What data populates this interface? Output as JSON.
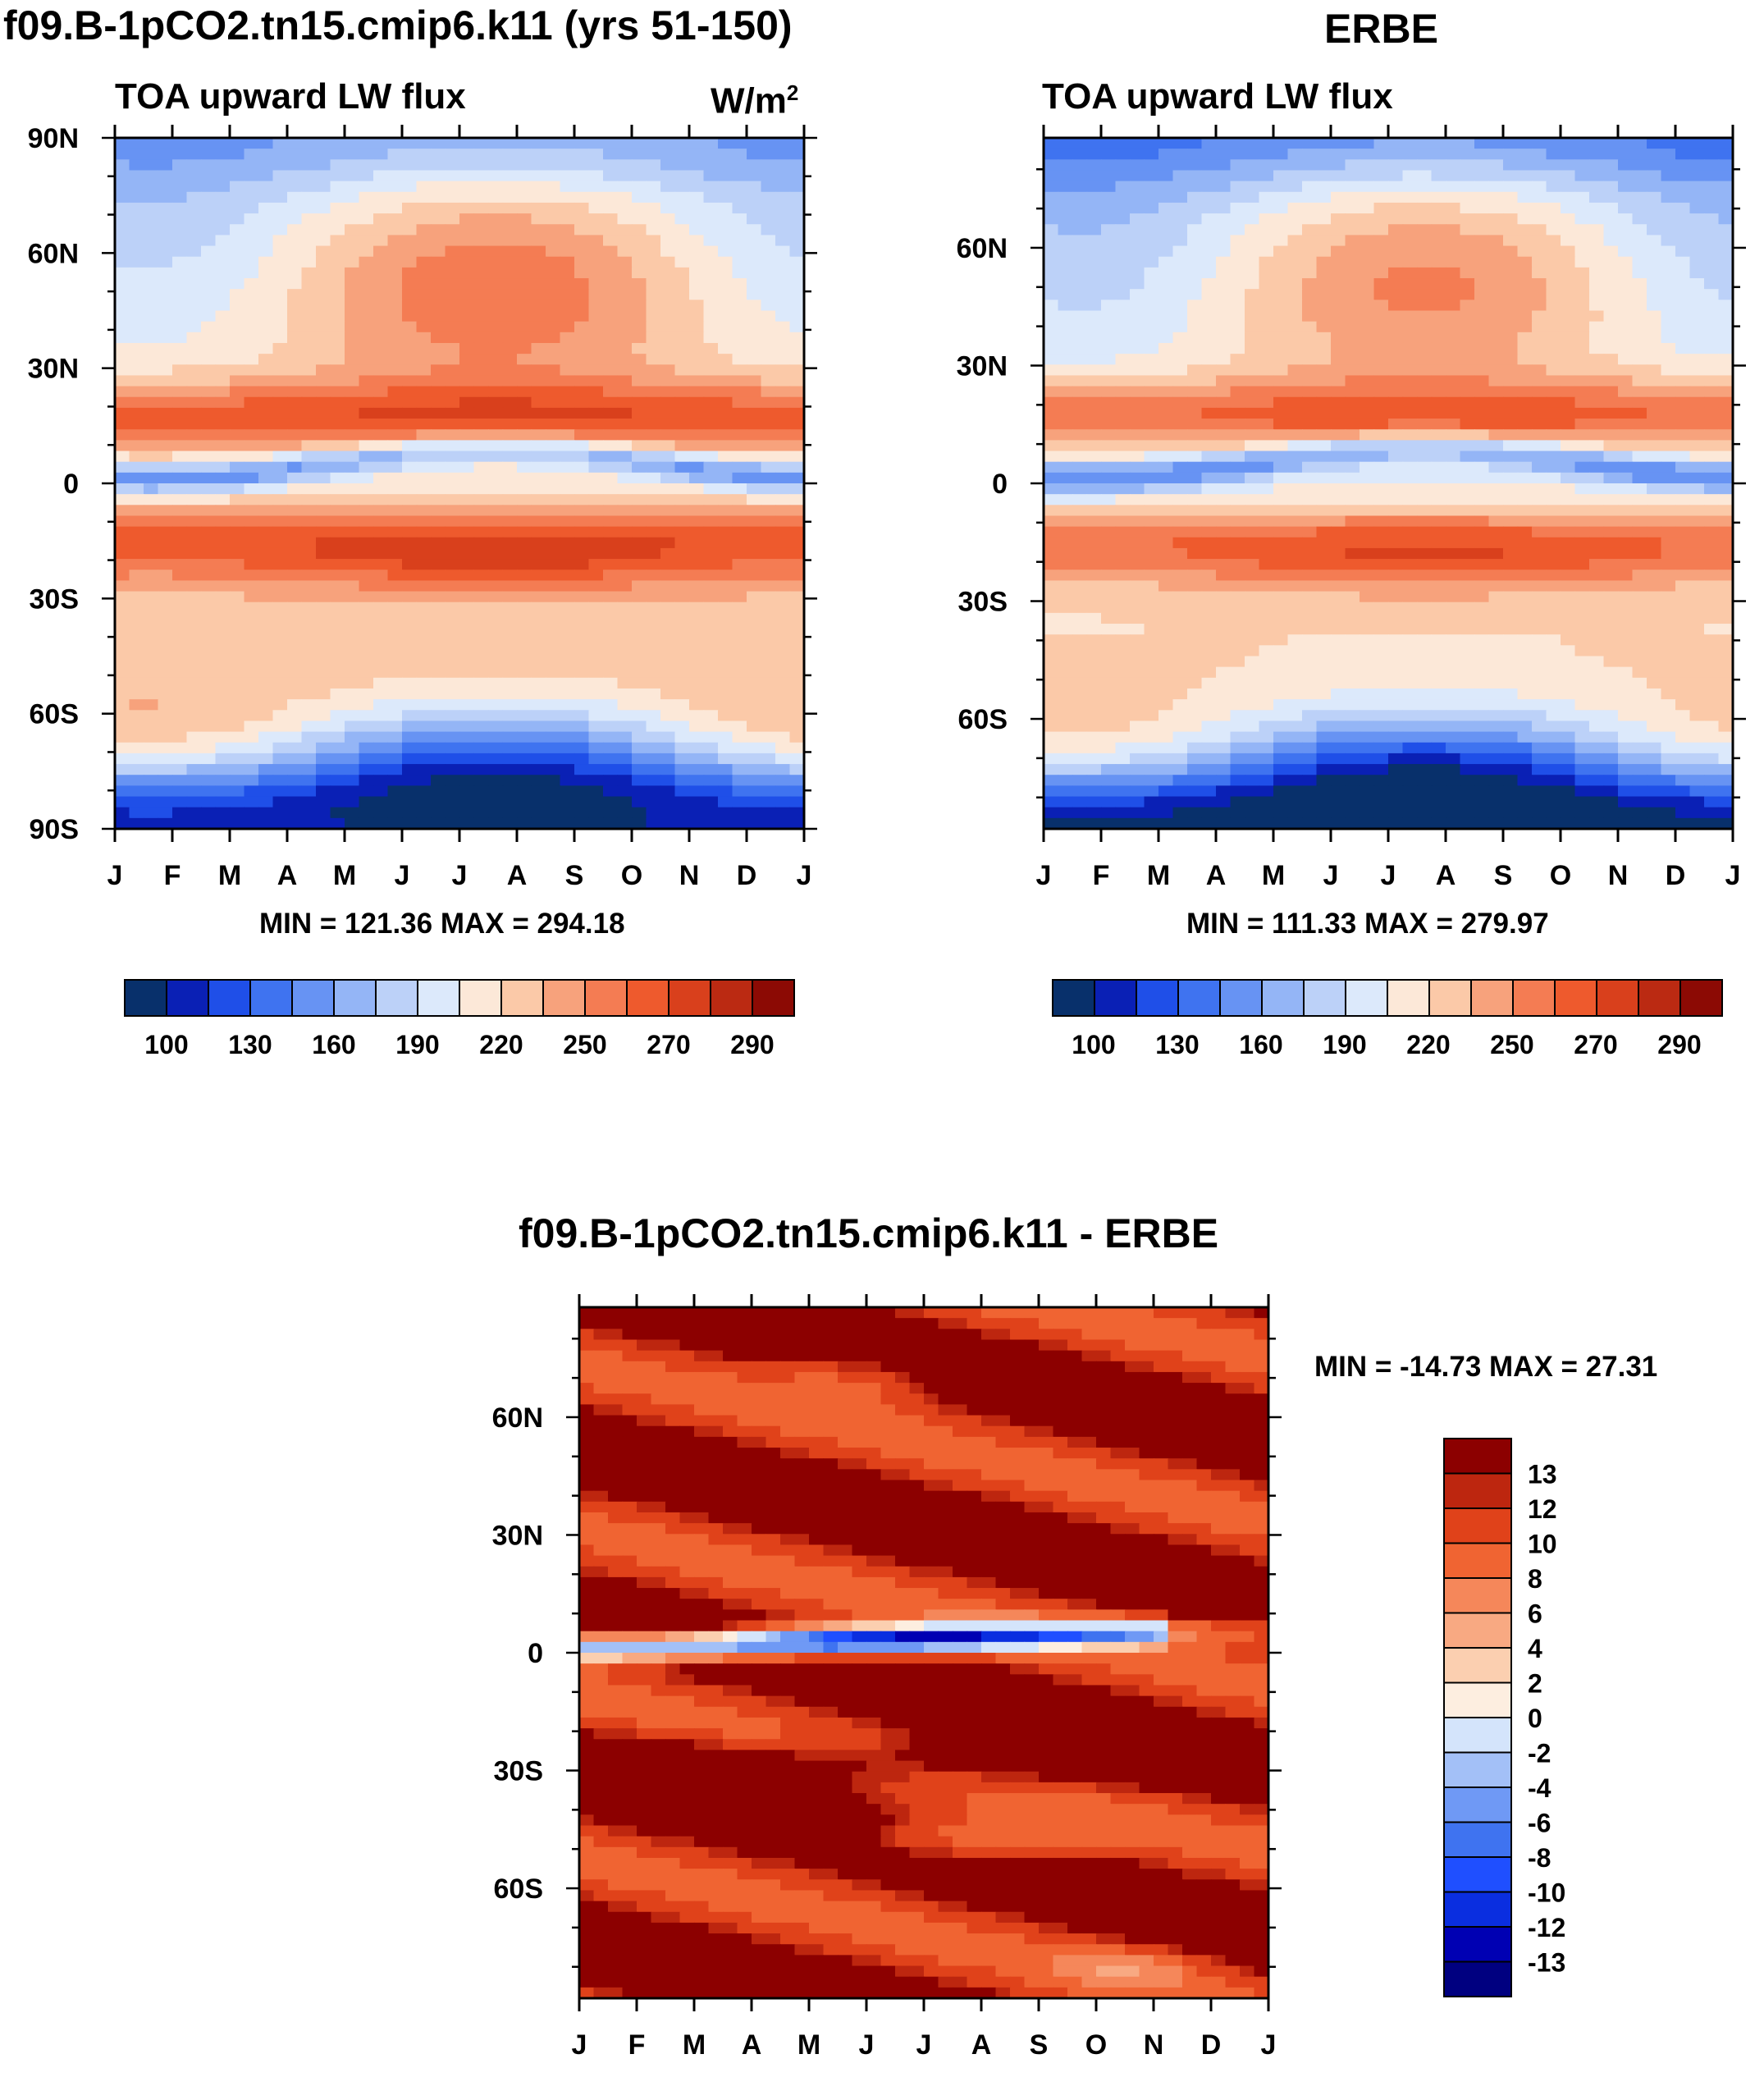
{
  "chart_data": [
    {
      "type": "heatmap",
      "id": "model",
      "title": "f09.B-1pCO2.tn15.cmip6.k11 (yrs 51-150)",
      "subtitle": "TOA upward LW flux",
      "units": "W/m",
      "units_sup": "2",
      "stats": "MIN = 121.36 MAX = 294.18",
      "xlabels": [
        "J",
        "F",
        "M",
        "A",
        "M",
        "J",
        "J",
        "A",
        "S",
        "O",
        "N",
        "D",
        "J"
      ],
      "ylabels": [
        "90N",
        "60N",
        "30N",
        "0",
        "30S",
        "60S",
        "90S"
      ],
      "ylim": [
        -90,
        90
      ],
      "colorbar": {
        "orientation": "horizontal",
        "labels": [
          "100",
          "130",
          "160",
          "190",
          "220",
          "250",
          "270",
          "290"
        ],
        "levels": 16
      },
      "field": "model"
    },
    {
      "type": "heatmap",
      "id": "obs",
      "title": "ERBE",
      "subtitle": "TOA upward LW flux",
      "stats": "MIN = 111.33 MAX = 279.97",
      "xlabels": [
        "J",
        "F",
        "M",
        "A",
        "M",
        "J",
        "J",
        "A",
        "S",
        "O",
        "N",
        "D",
        "J"
      ],
      "ylabels": [
        "60N",
        "30N",
        "0",
        "30S",
        "60S"
      ],
      "ylim": [
        -88,
        88
      ],
      "colorbar": {
        "orientation": "horizontal",
        "labels": [
          "100",
          "130",
          "160",
          "190",
          "220",
          "250",
          "270",
          "290"
        ],
        "levels": 16
      },
      "field": "obs"
    },
    {
      "type": "heatmap",
      "id": "diff",
      "title": "f09.B-1pCO2.tn15.cmip6.k11 - ERBE",
      "stats": "MIN = -14.73 MAX =  27.31",
      "xlabels": [
        "J",
        "F",
        "M",
        "A",
        "M",
        "J",
        "J",
        "A",
        "S",
        "O",
        "N",
        "D",
        "J"
      ],
      "ylabels": [
        "60N",
        "30N",
        "0",
        "30S",
        "60S"
      ],
      "ylim": [
        -88,
        88
      ],
      "colorbar": {
        "orientation": "vertical",
        "labels": [
          "13",
          "12",
          "10",
          "8",
          "6",
          "4",
          "2",
          "0",
          "-2",
          "-4",
          "-6",
          "-8",
          "-10",
          "-12",
          "-13"
        ],
        "levels": 16
      },
      "field": "diff"
    }
  ],
  "palette": [
    "#08306b",
    "#0a20b5",
    "#1f4fe8",
    "#3f73f0",
    "#6793f3",
    "#94b5f6",
    "#bcd1f8",
    "#dce9fb",
    "#fce8d8",
    "#fbc9a8",
    "#f7a27c",
    "#f47c53",
    "#ee5a2d",
    "#d9401c",
    "#bb2a12",
    "#8c0a04"
  ],
  "palette_diff": [
    "#000080",
    "#0000b3",
    "#0a2ee0",
    "#1f4fff",
    "#3f73f0",
    "#6f99f5",
    "#a3c0f7",
    "#d4e4fb",
    "#fdeee0",
    "#fbcfb0",
    "#f8a982",
    "#f5875a",
    "#f06432",
    "#e0421a",
    "#bd260f",
    "#8c0000"
  ]
}
